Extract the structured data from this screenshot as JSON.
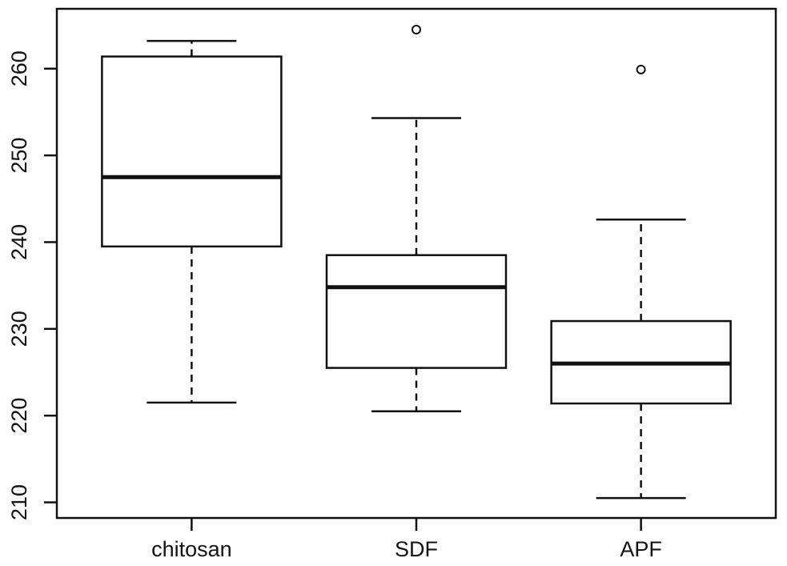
{
  "chart_data": {
    "type": "boxplot",
    "title": "",
    "xlabel": "",
    "ylabel": "",
    "categories": [
      "chitosan",
      "SDF",
      "APF"
    ],
    "series": [
      {
        "name": "chitosan",
        "whisker_low": 221.5,
        "q1": 239.5,
        "median": 247.5,
        "q3": 261.4,
        "whisker_high": 263.2,
        "outliers": []
      },
      {
        "name": "SDF",
        "whisker_low": 220.5,
        "q1": 225.5,
        "median": 234.8,
        "q3": 238.5,
        "whisker_high": 254.3,
        "outliers": [
          264.5
        ]
      },
      {
        "name": "APF",
        "whisker_low": 210.5,
        "q1": 221.4,
        "median": 226.0,
        "q3": 230.9,
        "whisker_high": 242.6,
        "outliers": [
          259.9
        ]
      }
    ],
    "yticks": [
      210,
      220,
      230,
      240,
      250,
      260
    ],
    "ylim": [
      208.2,
      266.9
    ],
    "grid": false,
    "legend": null,
    "colors": {
      "line": "#111111",
      "text": "#131313",
      "background": "#ffffff"
    }
  }
}
